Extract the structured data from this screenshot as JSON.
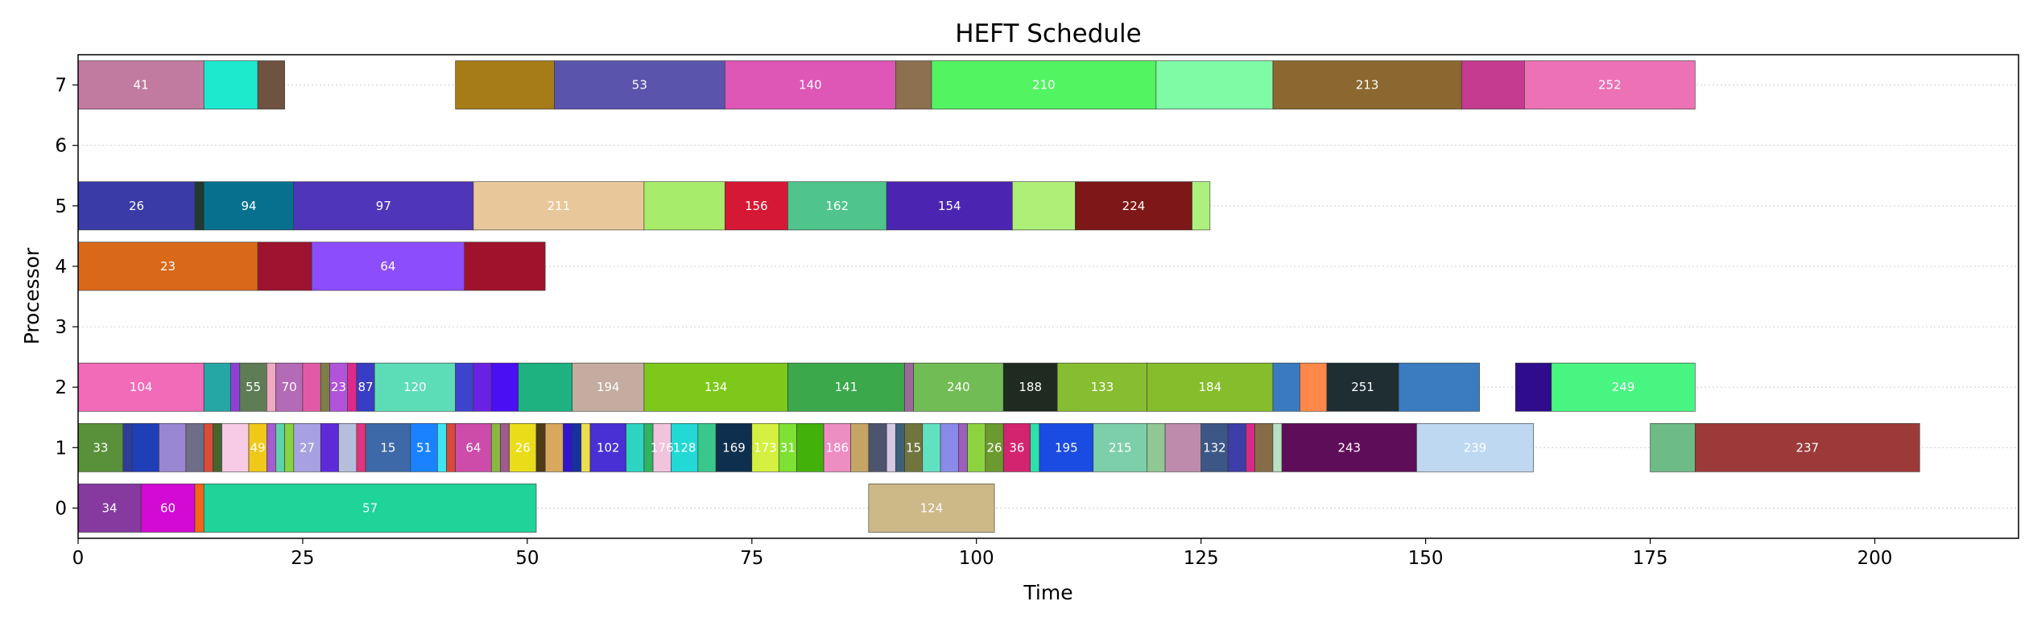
{
  "chart_data": {
    "type": "gantt",
    "title": "HEFT Schedule",
    "xlabel": "Time",
    "ylabel": "Processor",
    "xlim": [
      0,
      216
    ],
    "ylim": [
      -0.5,
      7.5
    ],
    "xticks": [
      0,
      25,
      50,
      75,
      100,
      125,
      150,
      175,
      200
    ],
    "yticks": [
      0,
      1,
      2,
      3,
      4,
      5,
      6,
      7
    ],
    "grid": "horizontal dotted",
    "tasks": [
      {
        "p": 7,
        "s": 0,
        "e": 14,
        "c": "#c27ba0",
        "l": "41"
      },
      {
        "p": 7,
        "s": 14,
        "e": 20,
        "c": "#1de9cf",
        "l": ""
      },
      {
        "p": 7,
        "s": 20,
        "e": 23,
        "c": "#6d5340",
        "l": ""
      },
      {
        "p": 7,
        "s": 42,
        "e": 53,
        "c": "#a67c18",
        "l": ""
      },
      {
        "p": 7,
        "s": 53,
        "e": 72,
        "c": "#5a54ad",
        "l": "53"
      },
      {
        "p": 7,
        "s": 72,
        "e": 91,
        "c": "#de56b6",
        "l": "140"
      },
      {
        "p": 7,
        "s": 91,
        "e": 95,
        "c": "#8d7050",
        "l": ""
      },
      {
        "p": 7,
        "s": 95,
        "e": 120,
        "c": "#53f462",
        "l": "210"
      },
      {
        "p": 7,
        "s": 120,
        "e": 133,
        "c": "#80fba5",
        "l": ""
      },
      {
        "p": 7,
        "s": 133,
        "e": 154,
        "c": "#8b6830",
        "l": "213"
      },
      {
        "p": 7,
        "s": 154,
        "e": 161,
        "c": "#c43b8f",
        "l": ""
      },
      {
        "p": 7,
        "s": 161,
        "e": 180,
        "c": "#ec72b5",
        "l": "252"
      },
      {
        "p": 5,
        "s": 0,
        "e": 13,
        "c": "#3b3ba7",
        "l": "26"
      },
      {
        "p": 5,
        "s": 13,
        "e": 14,
        "c": "#1f3a2e",
        "l": ""
      },
      {
        "p": 5,
        "s": 14,
        "e": 24,
        "c": "#08708f",
        "l": "94"
      },
      {
        "p": 5,
        "s": 24,
        "e": 44,
        "c": "#4f35b9",
        "l": "97"
      },
      {
        "p": 5,
        "s": 44,
        "e": 63,
        "c": "#e8c89a",
        "l": "211"
      },
      {
        "p": 5,
        "s": 63,
        "e": 72,
        "c": "#a8ec6c",
        "l": ""
      },
      {
        "p": 5,
        "s": 72,
        "e": 79,
        "c": "#d51835",
        "l": "156"
      },
      {
        "p": 5,
        "s": 79,
        "e": 90,
        "c": "#4fc48c",
        "l": "162"
      },
      {
        "p": 5,
        "s": 90,
        "e": 104,
        "c": "#4b25b2",
        "l": "154"
      },
      {
        "p": 5,
        "s": 104,
        "e": 111,
        "c": "#aeef77",
        "l": ""
      },
      {
        "p": 5,
        "s": 111,
        "e": 124,
        "c": "#7e1717",
        "l": "224"
      },
      {
        "p": 5,
        "s": 124,
        "e": 126,
        "c": "#aef07d",
        "l": ""
      },
      {
        "p": 4,
        "s": 0,
        "e": 20,
        "c": "#d96818",
        "l": "23"
      },
      {
        "p": 4,
        "s": 20,
        "e": 26,
        "c": "#9e1330",
        "l": ""
      },
      {
        "p": 4,
        "s": 26,
        "e": 43,
        "c": "#8c4dfc",
        "l": "64"
      },
      {
        "p": 4,
        "s": 43,
        "e": 52,
        "c": "#a0122b",
        "l": ""
      },
      {
        "p": 2,
        "s": 0,
        "e": 14,
        "c": "#f16bb8",
        "l": "104"
      },
      {
        "p": 2,
        "s": 14,
        "e": 17,
        "c": "#24a7a5",
        "l": ""
      },
      {
        "p": 2,
        "s": 17,
        "e": 18,
        "c": "#8e41d6",
        "l": ""
      },
      {
        "p": 2,
        "s": 18,
        "e": 21,
        "c": "#5e7c55",
        "l": "55"
      },
      {
        "p": 2,
        "s": 21,
        "e": 22,
        "c": "#f1a8c1",
        "l": ""
      },
      {
        "p": 2,
        "s": 22,
        "e": 25,
        "c": "#b36bb6",
        "l": "70"
      },
      {
        "p": 2,
        "s": 25,
        "e": 27,
        "c": "#e25aa7",
        "l": ""
      },
      {
        "p": 2,
        "s": 27,
        "e": 28,
        "c": "#7d7e46",
        "l": ""
      },
      {
        "p": 2,
        "s": 28,
        "e": 30,
        "c": "#b154d9",
        "l": "23"
      },
      {
        "p": 2,
        "s": 30,
        "e": 31,
        "c": "#dd2b8a",
        "l": ""
      },
      {
        "p": 2,
        "s": 31,
        "e": 33,
        "c": "#3a3cc5",
        "l": "87"
      },
      {
        "p": 2,
        "s": 33,
        "e": 42,
        "c": "#5ddcb8",
        "l": "120"
      },
      {
        "p": 2,
        "s": 42,
        "e": 44,
        "c": "#3e43cd",
        "l": ""
      },
      {
        "p": 2,
        "s": 44,
        "e": 46,
        "c": "#6a21e4",
        "l": ""
      },
      {
        "p": 2,
        "s": 46,
        "e": 49,
        "c": "#4a0ff2",
        "l": ""
      },
      {
        "p": 2,
        "s": 49,
        "e": 55,
        "c": "#1db280",
        "l": ""
      },
      {
        "p": 2,
        "s": 55,
        "e": 63,
        "c": "#c4aca0",
        "l": "194"
      },
      {
        "p": 2,
        "s": 63,
        "e": 79,
        "c": "#7ec81b",
        "l": "134"
      },
      {
        "p": 2,
        "s": 79,
        "e": 92,
        "c": "#3ba84b",
        "l": "141"
      },
      {
        "p": 2,
        "s": 92,
        "e": 93,
        "c": "#9b6a9c",
        "l": ""
      },
      {
        "p": 2,
        "s": 93,
        "e": 103,
        "c": "#71bc54",
        "l": "240"
      },
      {
        "p": 2,
        "s": 103,
        "e": 109,
        "c": "#1f2a20",
        "l": "188"
      },
      {
        "p": 2,
        "s": 109,
        "e": 119,
        "c": "#87bd30",
        "l": "133"
      },
      {
        "p": 2,
        "s": 119,
        "e": 133,
        "c": "#86bd2c",
        "l": "184"
      },
      {
        "p": 2,
        "s": 133,
        "e": 136,
        "c": "#3a7ac0",
        "l": ""
      },
      {
        "p": 2,
        "s": 136,
        "e": 139,
        "c": "#fd8849",
        "l": ""
      },
      {
        "p": 2,
        "s": 139,
        "e": 147,
        "c": "#1e2e33",
        "l": "251"
      },
      {
        "p": 2,
        "s": 147,
        "e": 156,
        "c": "#3a7cbf",
        "l": ""
      },
      {
        "p": 2,
        "s": 160,
        "e": 164,
        "c": "#2e0c8b",
        "l": ""
      },
      {
        "p": 2,
        "s": 164,
        "e": 180,
        "c": "#48f581",
        "l": "249"
      },
      {
        "p": 1,
        "s": 0,
        "e": 5,
        "c": "#59913a",
        "l": "33"
      },
      {
        "p": 1,
        "s": 5,
        "e": 6,
        "c": "#2e3c9a",
        "l": ""
      },
      {
        "p": 1,
        "s": 6,
        "e": 9,
        "c": "#1e3fb5",
        "l": ""
      },
      {
        "p": 1,
        "s": 9,
        "e": 12,
        "c": "#9a86d2",
        "l": ""
      },
      {
        "p": 1,
        "s": 12,
        "e": 14,
        "c": "#6e6e88",
        "l": ""
      },
      {
        "p": 1,
        "s": 14,
        "e": 15,
        "c": "#dd4a3b",
        "l": ""
      },
      {
        "p": 1,
        "s": 15,
        "e": 16,
        "c": "#46642c",
        "l": ""
      },
      {
        "p": 1,
        "s": 16,
        "e": 19,
        "c": "#f7cae6",
        "l": ""
      },
      {
        "p": 1,
        "s": 19,
        "e": 21,
        "c": "#f0c81a",
        "l": "49"
      },
      {
        "p": 1,
        "s": 21,
        "e": 22,
        "c": "#a55ccf",
        "l": ""
      },
      {
        "p": 1,
        "s": 22,
        "e": 23,
        "c": "#5fd2ad",
        "l": ""
      },
      {
        "p": 1,
        "s": 23,
        "e": 24,
        "c": "#87d440",
        "l": ""
      },
      {
        "p": 1,
        "s": 24,
        "e": 27,
        "c": "#a6a2e1",
        "l": "27"
      },
      {
        "p": 1,
        "s": 27,
        "e": 29,
        "c": "#5e2ad8",
        "l": ""
      },
      {
        "p": 1,
        "s": 29,
        "e": 31,
        "c": "#b5bfdc",
        "l": ""
      },
      {
        "p": 1,
        "s": 31,
        "e": 32,
        "c": "#e0357a",
        "l": ""
      },
      {
        "p": 1,
        "s": 32,
        "e": 37,
        "c": "#3d69a9",
        "l": "15"
      },
      {
        "p": 1,
        "s": 37,
        "e": 40,
        "c": "#1a82ff",
        "l": "51"
      },
      {
        "p": 1,
        "s": 40,
        "e": 41,
        "c": "#3be8f1",
        "l": ""
      },
      {
        "p": 1,
        "s": 41,
        "e": 42,
        "c": "#d54b3b",
        "l": ""
      },
      {
        "p": 1,
        "s": 42,
        "e": 46,
        "c": "#cd4ba9",
        "l": "64"
      },
      {
        "p": 1,
        "s": 46,
        "e": 47,
        "c": "#8ab742",
        "l": ""
      },
      {
        "p": 1,
        "s": 47,
        "e": 48,
        "c": "#9f5b8d",
        "l": ""
      },
      {
        "p": 1,
        "s": 48,
        "e": 51,
        "c": "#e9dd1a",
        "l": "26"
      },
      {
        "p": 1,
        "s": 51,
        "e": 52,
        "c": "#4f3c14",
        "l": ""
      },
      {
        "p": 1,
        "s": 52,
        "e": 54,
        "c": "#d7a85d",
        "l": ""
      },
      {
        "p": 1,
        "s": 54,
        "e": 55,
        "c": "#3016cb",
        "l": ""
      },
      {
        "p": 1,
        "s": 55,
        "e": 56,
        "c": "#16329e",
        "l": ""
      },
      {
        "p": 1,
        "s": 56,
        "e": 57,
        "c": "#ebe04b",
        "l": ""
      },
      {
        "p": 1,
        "s": 57,
        "e": 61,
        "c": "#4830d5",
        "l": "102"
      },
      {
        "p": 1,
        "s": 61,
        "e": 63,
        "c": "#2ed4c2",
        "l": ""
      },
      {
        "p": 1,
        "s": 63,
        "e": 64,
        "c": "#2fb461",
        "l": ""
      },
      {
        "p": 1,
        "s": 64,
        "e": 66,
        "c": "#f1c3dd",
        "l": "176"
      },
      {
        "p": 1,
        "s": 66,
        "e": 69,
        "c": "#22d9d5",
        "l": "128"
      },
      {
        "p": 1,
        "s": 69,
        "e": 71,
        "c": "#39c78c",
        "l": ""
      },
      {
        "p": 1,
        "s": 71,
        "e": 75,
        "c": "#0f2f4e",
        "l": "169"
      },
      {
        "p": 1,
        "s": 75,
        "e": 78,
        "c": "#d4f040",
        "l": "173"
      },
      {
        "p": 1,
        "s": 78,
        "e": 80,
        "c": "#7ee133",
        "l": "31"
      },
      {
        "p": 1,
        "s": 80,
        "e": 83,
        "c": "#42b20b",
        "l": ""
      },
      {
        "p": 1,
        "s": 83,
        "e": 86,
        "c": "#ec8ec2",
        "l": "186"
      },
      {
        "p": 1,
        "s": 86,
        "e": 88,
        "c": "#c4a564",
        "l": ""
      },
      {
        "p": 1,
        "s": 88,
        "e": 90,
        "c": "#4d556e",
        "l": ""
      },
      {
        "p": 1,
        "s": 90,
        "e": 91,
        "c": "#d4c8e4",
        "l": ""
      },
      {
        "p": 1,
        "s": 91,
        "e": 92,
        "c": "#3d6078",
        "l": ""
      },
      {
        "p": 1,
        "s": 92,
        "e": 94,
        "c": "#71753d",
        "l": "15"
      },
      {
        "p": 1,
        "s": 94,
        "e": 96,
        "c": "#62e0c2",
        "l": ""
      },
      {
        "p": 1,
        "s": 96,
        "e": 98,
        "c": "#8b8ae9",
        "l": ""
      },
      {
        "p": 1,
        "s": 98,
        "e": 99,
        "c": "#9e5ebd",
        "l": ""
      },
      {
        "p": 1,
        "s": 99,
        "e": 101,
        "c": "#8bd43f",
        "l": ""
      },
      {
        "p": 1,
        "s": 101,
        "e": 103,
        "c": "#6b9a2f",
        "l": "26"
      },
      {
        "p": 1,
        "s": 103,
        "e": 106,
        "c": "#d2246f",
        "l": "36"
      },
      {
        "p": 1,
        "s": 106,
        "e": 107,
        "c": "#2ce2a8",
        "l": ""
      },
      {
        "p": 1,
        "s": 107,
        "e": 113,
        "c": "#1a4ce3",
        "l": "195"
      },
      {
        "p": 1,
        "s": 113,
        "e": 119,
        "c": "#7dcfaa",
        "l": "215"
      },
      {
        "p": 1,
        "s": 119,
        "e": 121,
        "c": "#91c793",
        "l": ""
      },
      {
        "p": 1,
        "s": 121,
        "e": 125,
        "c": "#be8bac",
        "l": ""
      },
      {
        "p": 1,
        "s": 125,
        "e": 128,
        "c": "#3c5685",
        "l": "132"
      },
      {
        "p": 1,
        "s": 128,
        "e": 130,
        "c": "#3d3ea7",
        "l": ""
      },
      {
        "p": 1,
        "s": 130,
        "e": 131,
        "c": "#d72a86",
        "l": ""
      },
      {
        "p": 1,
        "s": 131,
        "e": 133,
        "c": "#866d48",
        "l": ""
      },
      {
        "p": 1,
        "s": 133,
        "e": 134,
        "c": "#b8e0c2",
        "l": ""
      },
      {
        "p": 1,
        "s": 134,
        "e": 149,
        "c": "#5e0e58",
        "l": "243"
      },
      {
        "p": 1,
        "s": 149,
        "e": 162,
        "c": "#bfd8f2",
        "l": "239"
      },
      {
        "p": 1,
        "s": 175,
        "e": 180,
        "c": "#6dbb86",
        "l": ""
      },
      {
        "p": 1,
        "s": 180,
        "e": 205,
        "c": "#9c3a3a",
        "l": "237"
      },
      {
        "p": 0,
        "s": 0,
        "e": 7,
        "c": "#863aa0",
        "l": "34"
      },
      {
        "p": 0,
        "s": 7,
        "e": 13,
        "c": "#d20ad3",
        "l": "60"
      },
      {
        "p": 0,
        "s": 13,
        "e": 14,
        "c": "#f56418",
        "l": ""
      },
      {
        "p": 0,
        "s": 14,
        "e": 51,
        "c": "#1ed499",
        "l": "57"
      },
      {
        "p": 0,
        "s": 88,
        "e": 102,
        "c": "#cdb888",
        "l": "124"
      }
    ]
  }
}
